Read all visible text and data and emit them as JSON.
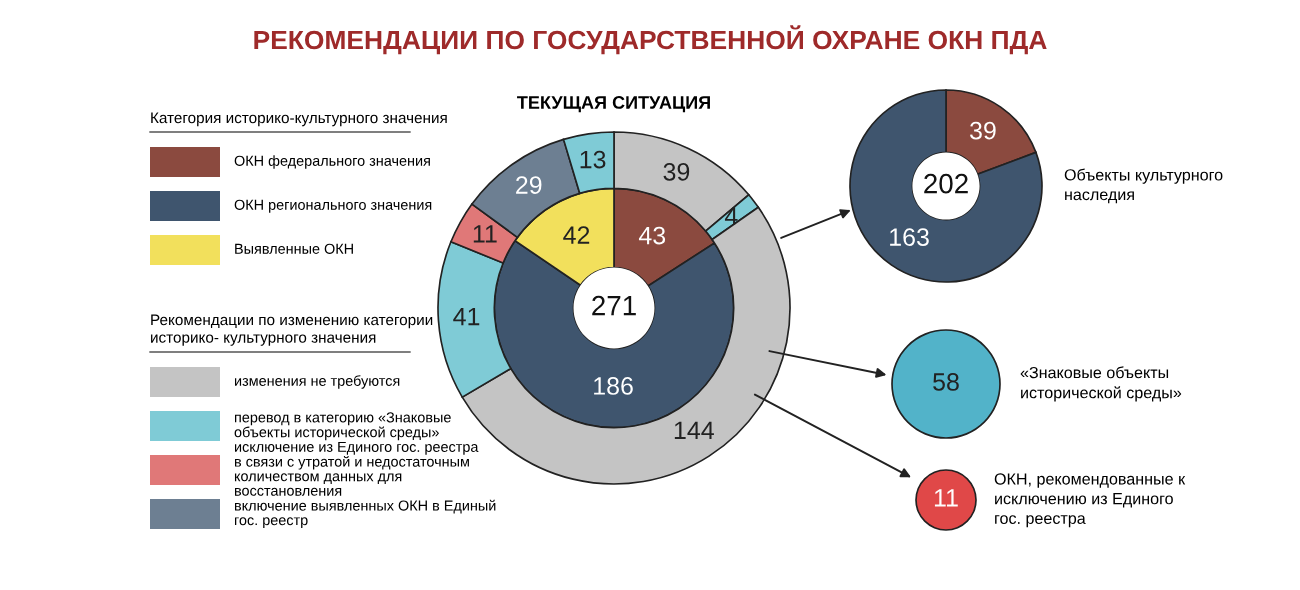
{
  "chart_data": [
    {
      "type": "donut",
      "title": "РЕКОМЕНДАЦИИ ПО ГОСУДАРСТВЕННОЙ ОХРАНЕ ОКН ПДА",
      "subtitle": "ТЕКУЩАЯ СИТУАЦИЯ",
      "data_labels": true,
      "annotations": [
        "271",
        "Категория историко-культурного значения",
        "ОКН федерального значения",
        "ОКН регионального значения",
        "Выявленные ОКН",
        "Рекомендации по изменению категории историко- культурного значения",
        "изменения не требуются",
        "перевод в категорию «Знаковые объекты исторической среды»",
        "исключение из Единого гос. реестра в связи с утратой и недостаточным количеством данных для восстановления",
        "включение выявленных ОКН в Единый гос. реестр"
      ],
      "series": [
        {
          "values": [
            43,
            186,
            42
          ],
          "colors": [
            "#8b4a3f",
            "#3f556e",
            "#f2e05c"
          ]
        },
        {
          "values": [
            39,
            4,
            144,
            41,
            11,
            29,
            13
          ],
          "colors": [
            "#c4c4c4",
            "#7fcbd6",
            "#c4c4c4",
            "#7fcbd6",
            "#e07878",
            "#6d7f92",
            "#7fcbd6"
          ]
        }
      ]
    },
    {
      "type": "donut",
      "categories": [
        null,
        null
      ],
      "values": [
        39,
        163
      ],
      "colors": [
        "#8b4a3f",
        "#3f556e"
      ],
      "data_labels": true,
      "annotations": [
        "202",
        "Объекты культурного наследия"
      ]
    },
    {
      "type": "pie",
      "categories": [
        null
      ],
      "values": [
        58
      ],
      "colors": [
        "#52b3c9"
      ],
      "data_labels": true,
      "annotations": [
        "«Знаковые объекты исторической среды»"
      ]
    },
    {
      "type": "pie",
      "categories": [
        null
      ],
      "values": [
        11
      ],
      "colors": [
        "#e04848"
      ],
      "data_labels": true,
      "annotations": [
        "ОКН, рекомендованные к исключению из Единого гос. реестра"
      ]
    }
  ]
}
